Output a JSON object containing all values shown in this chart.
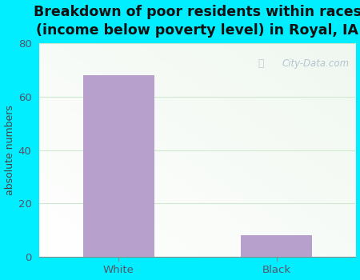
{
  "title": "Breakdown of poor residents within races\n(income below poverty level) in Royal, IA",
  "categories": [
    "White",
    "Black"
  ],
  "values": [
    68,
    8
  ],
  "bar_color": "#b8a0cc",
  "ylabel": "absolute numbers",
  "ylim": [
    0,
    80
  ],
  "yticks": [
    0,
    20,
    40,
    60,
    80
  ],
  "background_outer": "#00eeff",
  "plot_bg_color1": "#f0f8f0",
  "plot_bg_color2": "#ffffff",
  "grid_color": "#d0e8d0",
  "title_fontsize": 12.5,
  "axis_label_fontsize": 9,
  "tick_fontsize": 9.5,
  "watermark_text": "City-Data.com",
  "title_color": "#111111",
  "tick_color": "#555566",
  "ylabel_color": "#444444"
}
